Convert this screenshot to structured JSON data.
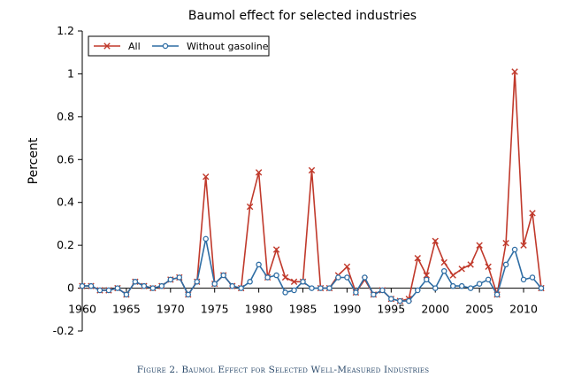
{
  "chart_data": {
    "type": "line",
    "title": "Baumol effect for selected industries",
    "ylabel": "Percent",
    "xlabel": "",
    "xlim": [
      1960,
      2012
    ],
    "ylim": [
      -0.2,
      1.2
    ],
    "x_ticks": [
      1960,
      1965,
      1970,
      1975,
      1980,
      1985,
      1990,
      1995,
      2000,
      2005,
      2010
    ],
    "y_ticks": [
      -0.2,
      0,
      0.2,
      0.4,
      0.6,
      0.8,
      1,
      1.2
    ],
    "y_tick_labels": [
      "-0.2",
      "0",
      "0.2",
      "0.4",
      "0.6",
      "0.8",
      "1",
      "1.2"
    ],
    "x": [
      1960,
      1961,
      1962,
      1963,
      1964,
      1965,
      1966,
      1967,
      1968,
      1969,
      1970,
      1971,
      1972,
      1973,
      1974,
      1975,
      1976,
      1977,
      1978,
      1979,
      1980,
      1981,
      1982,
      1983,
      1984,
      1985,
      1986,
      1987,
      1988,
      1989,
      1990,
      1991,
      1992,
      1993,
      1994,
      1995,
      1996,
      1997,
      1998,
      1999,
      2000,
      2001,
      2002,
      2003,
      2004,
      2005,
      2006,
      2007,
      2008,
      2009,
      2010,
      2011,
      2012
    ],
    "series": [
      {
        "name": "All",
        "color": "#c0392b",
        "marker": "x",
        "values": [
          0.01,
          0.01,
          -0.01,
          -0.01,
          0.0,
          -0.03,
          0.03,
          0.01,
          0.0,
          0.01,
          0.04,
          0.05,
          -0.03,
          0.03,
          0.52,
          0.02,
          0.06,
          0.01,
          0.0,
          0.38,
          0.54,
          0.05,
          0.18,
          0.05,
          0.03,
          0.03,
          0.55,
          0.0,
          0.0,
          0.06,
          0.1,
          -0.02,
          0.04,
          -0.03,
          -0.01,
          -0.05,
          -0.06,
          -0.05,
          0.14,
          0.06,
          0.22,
          0.12,
          0.06,
          0.09,
          0.11,
          0.2,
          0.1,
          -0.03,
          0.21,
          1.01,
          0.2,
          0.35,
          0.0
        ]
      },
      {
        "name": "Without gasoline",
        "color": "#2e6da4",
        "marker": "o",
        "values": [
          0.01,
          0.01,
          -0.01,
          -0.01,
          0.0,
          -0.03,
          0.03,
          0.01,
          0.0,
          0.01,
          0.04,
          0.05,
          -0.03,
          0.03,
          0.23,
          0.02,
          0.06,
          0.01,
          0.0,
          0.03,
          0.11,
          0.05,
          0.06,
          -0.02,
          -0.01,
          0.03,
          0.0,
          0.0,
          0.0,
          0.05,
          0.05,
          -0.02,
          0.05,
          -0.03,
          -0.01,
          -0.05,
          -0.06,
          -0.06,
          -0.01,
          0.04,
          0.0,
          0.08,
          0.01,
          0.01,
          0.0,
          0.02,
          0.04,
          -0.03,
          0.11,
          0.18,
          0.04,
          0.05,
          0.0
        ]
      }
    ],
    "legend_position": "top-left",
    "grid": false
  },
  "caption": "Figure 2. Baumol Effect for Selected Well-Measured Industries"
}
